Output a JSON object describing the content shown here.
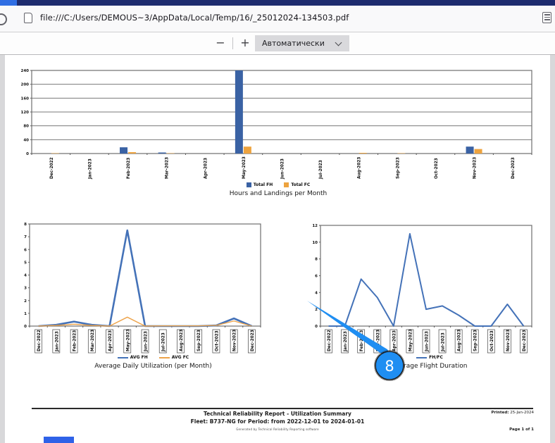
{
  "browser": {
    "url": "file:///C:/Users/DEMOUS~3/AppData/Local/Temp/16/_25012024-134503.pdf"
  },
  "pdf_toolbar": {
    "zoom_out_label": "−",
    "zoom_in_label": "+",
    "zoom_select_value": "Автоматически"
  },
  "annotation": {
    "step_number": "8"
  },
  "report": {
    "footer": {
      "title": "Technical Reliability Report - Utilization Summary",
      "fleet_line": "Fleet: B737-NG for Period: from 2022-12-01 to 2024-01-01",
      "fine_print": "Generated by Technical Reliability Reporting software",
      "printed_label": "Printed:",
      "printed_value": "25-Jan-2024",
      "page_label": "Page 1 of 1"
    }
  },
  "chart_data": [
    {
      "type": "bar",
      "title": "Hours and Landings per Month",
      "categories": [
        "Dec-2022",
        "Jan-2023",
        "Feb-2023",
        "Mar-2023",
        "Apr-2023",
        "May-2023",
        "Jun-2023",
        "Jul-2023",
        "Aug-2023",
        "Sep-2023",
        "Oct-2023",
        "Nov-2023",
        "Dec-2023"
      ],
      "series": [
        {
          "name": "Total FH",
          "color": "#3a62a4",
          "values": [
            0,
            0,
            18,
            3,
            0,
            240,
            0,
            0,
            0,
            0,
            0,
            20,
            0
          ]
        },
        {
          "name": "Total FC",
          "color": "#eda33f",
          "values": [
            1,
            0,
            4,
            1,
            0,
            20,
            0,
            0,
            2,
            1,
            0,
            13,
            0
          ]
        }
      ],
      "ylim": [
        0,
        240
      ],
      "ytick": 40,
      "grid": true,
      "boxed_x_labels": false,
      "legend_position": "bottom"
    },
    {
      "type": "line",
      "title": "Average Daily Utilization (per Month)",
      "categories": [
        "Dec-2022",
        "Jan-2023",
        "Feb-2023",
        "Mar-2023",
        "Apr-2023",
        "May-2023",
        "Jun-2023",
        "Jul-2023",
        "Aug-2023",
        "Sep-2023",
        "Oct-2023",
        "Nov-2023",
        "Dec-2023"
      ],
      "series": [
        {
          "name": "AVG FH",
          "color": "#4472b8",
          "width": 2.6,
          "values": [
            0,
            0.1,
            0.35,
            0.1,
            0,
            7.5,
            0,
            0,
            0,
            0,
            0.05,
            0.6,
            0
          ]
        },
        {
          "name": "AVG FC",
          "color": "#eda34a",
          "width": 1.4,
          "values": [
            0,
            0.05,
            0.15,
            0.05,
            0,
            0.7,
            0,
            0.02,
            0.02,
            0.02,
            0.05,
            0.4,
            0
          ]
        }
      ],
      "ylim": [
        0,
        8
      ],
      "ytick": 1,
      "grid": false,
      "boxed_x_labels": true,
      "legend_position": "bottom"
    },
    {
      "type": "line",
      "title": "Average Flight Duration",
      "categories": [
        "Dec-2022",
        "Jan-2023",
        "Feb-2023",
        "Mar-2023",
        "Apr-2023",
        "May-2023",
        "Jun-2023",
        "Jul-2023",
        "Aug-2023",
        "Sep-2023",
        "Oct-2023",
        "Nov-2023",
        "Dec-2023"
      ],
      "series": [
        {
          "name": "FH/FC",
          "color": "#4472b8",
          "width": 2,
          "values": [
            0,
            0,
            5.6,
            3.4,
            0,
            11,
            2,
            2.4,
            1.3,
            0,
            0,
            2.6,
            0
          ]
        }
      ],
      "ylim": [
        0,
        12
      ],
      "ytick": 2,
      "grid": false,
      "boxed_x_labels": true,
      "legend_position": "bottom"
    }
  ]
}
